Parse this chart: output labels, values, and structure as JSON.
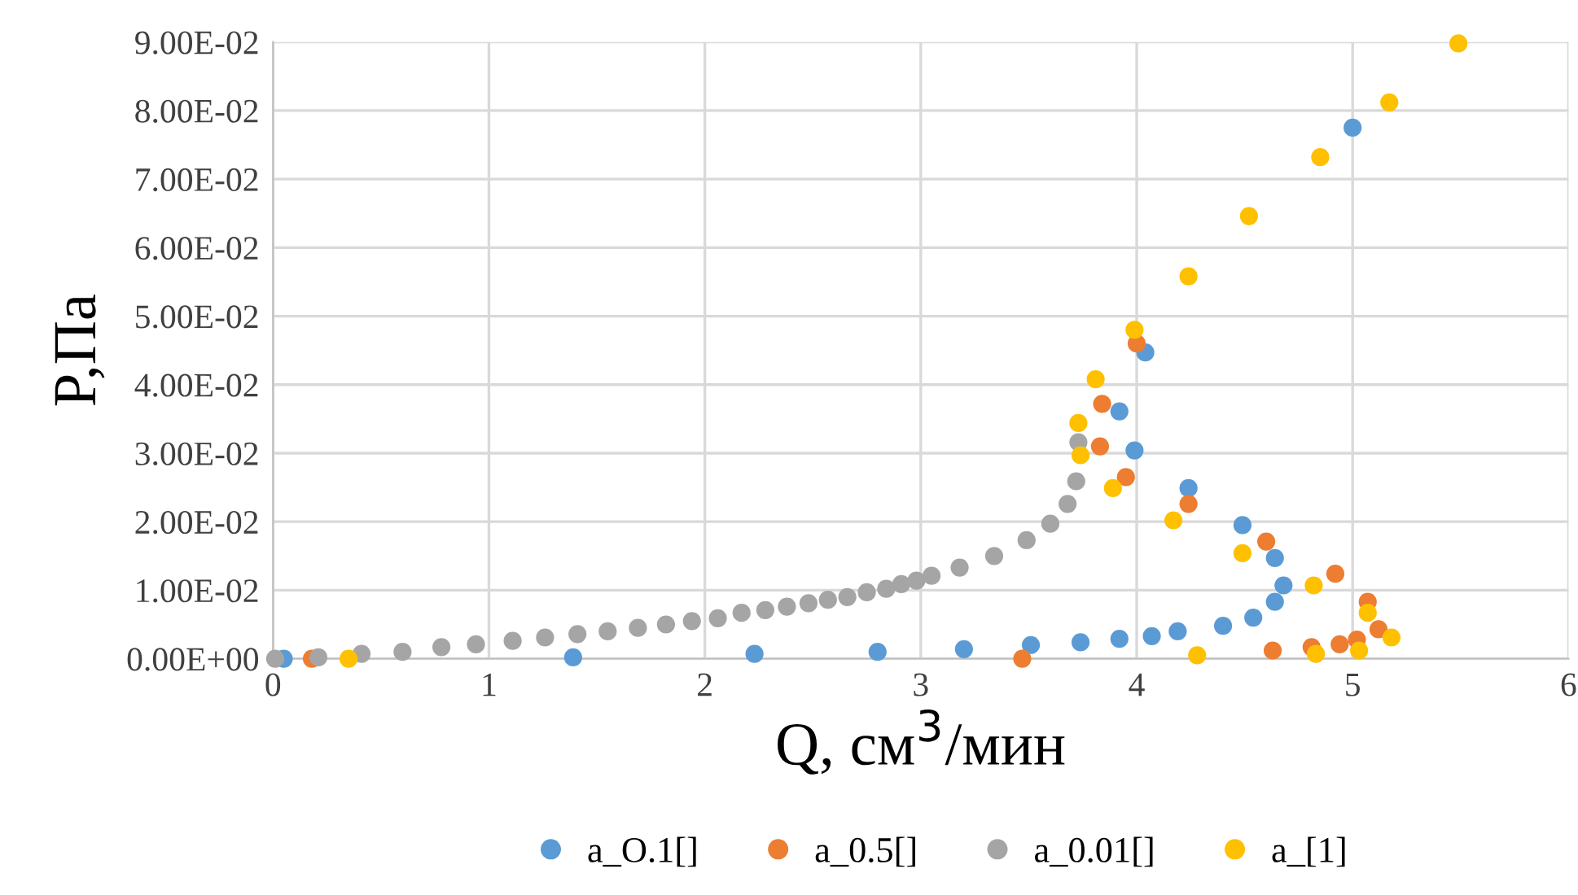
{
  "chart_data": {
    "type": "scatter",
    "xlabel": "Q, см$^{3}$/мин",
    "ylabel": "P,Па",
    "xlim": [
      0,
      6
    ],
    "xticks": [
      0,
      1,
      2,
      3,
      4,
      5,
      6
    ],
    "ylim": [
      0,
      0.09
    ],
    "yticks": [
      {
        "value": 0,
        "label": "0.00E+00"
      },
      {
        "value": 0.01,
        "label": "1.00E-02"
      },
      {
        "value": 0.02,
        "label": "2.00E-02"
      },
      {
        "value": 0.03,
        "label": "3.00E-02"
      },
      {
        "value": 0.04,
        "label": "4.00E-02"
      },
      {
        "value": 0.05,
        "label": "5.00E-02"
      },
      {
        "value": 0.06,
        "label": "6.00E-02"
      },
      {
        "value": 0.07,
        "label": "7.00E-02"
      },
      {
        "value": 0.08,
        "label": "8.00E-02"
      },
      {
        "value": 0.09,
        "label": "9.00E-02"
      }
    ],
    "grid": true,
    "legend": "bottom",
    "marker": "circle",
    "series": [
      {
        "name": "a_O.1[]",
        "color": "#5b9bd5",
        "x": [
          5.0,
          4.04,
          3.92,
          3.99,
          4.24,
          4.49,
          4.64,
          4.68,
          4.64,
          4.54,
          4.4,
          4.19,
          4.07,
          3.92,
          3.74,
          3.51,
          3.2,
          2.8,
          2.23,
          1.39,
          0.05
        ],
        "values": [
          0.0775,
          0.0447,
          0.0361,
          0.0304,
          0.0249,
          0.0195,
          0.0147,
          0.0107,
          0.0083,
          0.006,
          0.0048,
          0.004,
          0.0033,
          0.0029,
          0.0024,
          0.002,
          0.0014,
          0.001,
          0.0007,
          0.0002,
          0.0
        ]
      },
      {
        "name": "a_0.5[]",
        "color": "#ed7d31",
        "x": [
          4.0,
          3.84,
          3.83,
          3.95,
          4.24,
          4.6,
          4.92,
          5.07,
          5.12,
          5.02,
          4.94,
          4.81,
          4.63,
          3.47,
          0.18
        ],
        "values": [
          0.046,
          0.0372,
          0.031,
          0.0265,
          0.0226,
          0.0171,
          0.0124,
          0.0083,
          0.0043,
          0.0028,
          0.0021,
          0.0017,
          0.0012,
          0.0,
          0.0
        ]
      },
      {
        "name": "a_0.01[]",
        "color": "#a5a5a5",
        "x": [
          0.01,
          0.21,
          0.41,
          0.6,
          0.78,
          0.94,
          1.11,
          1.26,
          1.41,
          1.55,
          1.69,
          1.82,
          1.94,
          2.06,
          2.17,
          2.28,
          2.38,
          2.48,
          2.57,
          2.66,
          2.75,
          2.84,
          2.91,
          2.98,
          3.05,
          3.18,
          3.34,
          3.49,
          3.6,
          3.68,
          3.72,
          3.73
        ],
        "values": [
          0.0,
          0.0002,
          0.0007,
          0.001,
          0.0017,
          0.0021,
          0.0026,
          0.0031,
          0.0036,
          0.004,
          0.0045,
          0.005,
          0.0055,
          0.0059,
          0.0067,
          0.0071,
          0.0076,
          0.0081,
          0.0086,
          0.009,
          0.0097,
          0.0102,
          0.0109,
          0.0114,
          0.0121,
          0.0133,
          0.015,
          0.0173,
          0.0197,
          0.0226,
          0.0259,
          0.0316
        ]
      },
      {
        "name": "a_[1]",
        "color": "#ffc000",
        "x": [
          5.49,
          5.17,
          4.85,
          4.52,
          4.24,
          3.99,
          3.81,
          3.73,
          3.74,
          3.89,
          4.17,
          4.49,
          4.82,
          5.07,
          5.18,
          5.03,
          4.83,
          4.28,
          0.35
        ],
        "values": [
          0.0898,
          0.0812,
          0.0732,
          0.0646,
          0.0558,
          0.048,
          0.0408,
          0.0344,
          0.0297,
          0.0249,
          0.0202,
          0.0154,
          0.0107,
          0.0067,
          0.0031,
          0.0012,
          0.0007,
          0.0005,
          0.0
        ]
      }
    ]
  }
}
